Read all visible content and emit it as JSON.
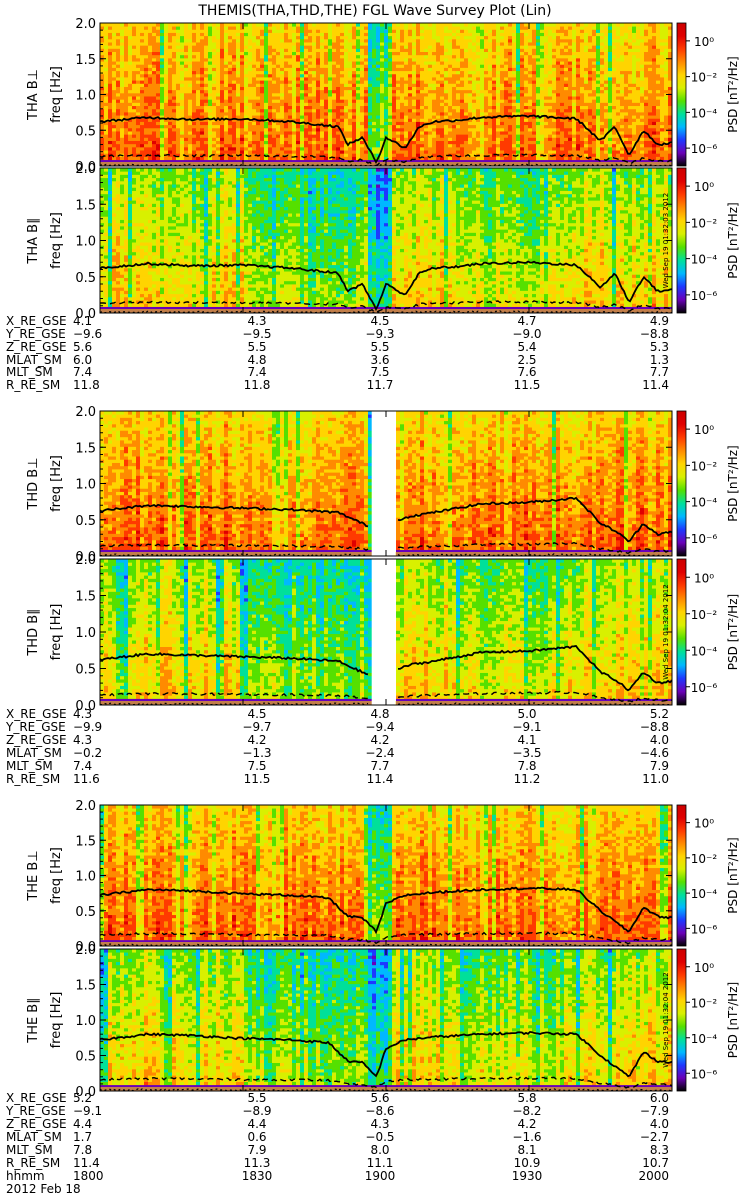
{
  "title": "THEMIS(THA,THD,THE) FGL Wave Survey Plot (Lin)",
  "colorbar": {
    "label": "PSD [nT²/Hz]",
    "tick_labels": [
      "10⁰",
      "10⁻²",
      "10⁻⁴",
      "10⁻⁶"
    ],
    "tick_exponents": [
      0,
      -2,
      -4,
      -6
    ],
    "range_exponent": [
      -7,
      1
    ],
    "colors": [
      "#000000",
      "#6a00b8",
      "#1e38ff",
      "#00b8ff",
      "#00e09a",
      "#55e000",
      "#d8f000",
      "#ffd400",
      "#ff8a00",
      "#ff3a00",
      "#e00000",
      "#cc0000"
    ]
  },
  "timestamps": [
    "Wed Sep 19 01:32:03 2012",
    "Wed Sep 19 01:32:04 2012",
    "Wed Sep 19 01:32:04 2012"
  ],
  "ylabel_unit": "freq [Hz]",
  "yticks": [
    "0.0",
    "0.5",
    "1.0",
    "1.5",
    "2.0"
  ],
  "probes": [
    {
      "name": "THA",
      "panels": [
        "THA B⊥",
        "THA B∥"
      ],
      "ephemeris": [
        {
          "label": "X_RE_GSE",
          "values": [
            "4.1",
            "4.3",
            "4.5",
            "4.7",
            "4.9"
          ]
        },
        {
          "label": "Y_RE_GSE",
          "values": [
            "−9.6",
            "−9.5",
            "−9.3",
            "−9.0",
            "−8.8"
          ]
        },
        {
          "label": "Z_RE_GSE",
          "values": [
            "5.6",
            "5.5",
            "5.5",
            "5.4",
            "5.3"
          ]
        },
        {
          "label": "MLAT_SM",
          "values": [
            "6.0",
            "4.8",
            "3.6",
            "2.5",
            "1.3"
          ]
        },
        {
          "label": "MLT_SM",
          "values": [
            "7.4",
            "7.4",
            "7.5",
            "7.6",
            "7.7"
          ]
        },
        {
          "label": "R_RE_SM",
          "values": [
            "11.8",
            "11.8",
            "11.7",
            "11.5",
            "11.4"
          ]
        }
      ]
    },
    {
      "name": "THD",
      "panels": [
        "THD B⊥",
        "THD B∥"
      ],
      "ephemeris": [
        {
          "label": "X_RE_GSE",
          "values": [
            "4.3",
            "4.5",
            "4.8",
            "5.0",
            "5.2"
          ]
        },
        {
          "label": "Y_RE_GSE",
          "values": [
            "−9.9",
            "−9.7",
            "−9.4",
            "−9.1",
            "−8.8"
          ]
        },
        {
          "label": "Z_RE_GSE",
          "values": [
            "4.3",
            "4.2",
            "4.2",
            "4.1",
            "4.0"
          ]
        },
        {
          "label": "MLAT_SM",
          "values": [
            "−0.2",
            "−1.3",
            "−2.4",
            "−3.5",
            "−4.6"
          ]
        },
        {
          "label": "MLT_SM",
          "values": [
            "7.4",
            "7.5",
            "7.7",
            "7.8",
            "7.9"
          ]
        },
        {
          "label": "R_RE_SM",
          "values": [
            "11.6",
            "11.5",
            "11.4",
            "11.2",
            "11.0"
          ]
        }
      ]
    },
    {
      "name": "THE",
      "panels": [
        "THE B⊥",
        "THE B∥"
      ],
      "ephemeris": [
        {
          "label": "X_RE_GSE",
          "values": [
            "5.2",
            "5.5",
            "5.6",
            "5.8",
            "6.0"
          ]
        },
        {
          "label": "Y_RE_GSE",
          "values": [
            "−9.1",
            "−8.9",
            "−8.6",
            "−8.2",
            "−7.9"
          ]
        },
        {
          "label": "Z_RE_GSE",
          "values": [
            "4.4",
            "4.4",
            "4.3",
            "4.2",
            "4.0"
          ]
        },
        {
          "label": "MLAT_SM",
          "values": [
            "1.7",
            "0.6",
            "−0.5",
            "−1.6",
            "−2.7"
          ]
        },
        {
          "label": "MLT_SM",
          "values": [
            "7.8",
            "7.9",
            "8.0",
            "8.1",
            "8.3"
          ]
        },
        {
          "label": "R_RE_SM",
          "values": [
            "11.4",
            "11.3",
            "11.1",
            "10.9",
            "10.7"
          ]
        },
        {
          "label": "hhmm",
          "values": [
            "1800",
            "1830",
            "1900",
            "1930",
            "2000"
          ]
        }
      ]
    }
  ],
  "date_label": "2012 Feb 18",
  "chart_data": {
    "type": "heatmap",
    "x_label": "hhmm",
    "x_ticks": [
      "1800",
      "1830",
      "1900",
      "1930",
      "2000"
    ],
    "x_range": [
      "18:00",
      "20:00"
    ],
    "y_range": [
      0.0,
      2.0
    ],
    "y_ticks": [
      0.0,
      0.5,
      1.0,
      1.5,
      2.0
    ],
    "color_scale": "log",
    "data_gaps": [
      {
        "probe": "THD",
        "start": "18:57",
        "end": "19:02"
      }
    ],
    "approx_fce_line_hz": {
      "THA": {
        "x": [
          0,
          10,
          20,
          30,
          40,
          50,
          52,
          55,
          58,
          60,
          64,
          67,
          70,
          75,
          80,
          90,
          100,
          105,
          108,
          111,
          114,
          117,
          120
        ],
        "y": [
          0.62,
          0.68,
          0.65,
          0.66,
          0.62,
          0.55,
          0.3,
          0.4,
          0.05,
          0.4,
          0.25,
          0.55,
          0.62,
          0.64,
          0.68,
          0.7,
          0.66,
          0.35,
          0.55,
          0.15,
          0.5,
          0.3,
          0.32
        ]
      },
      "THD": {
        "x": [
          0,
          10,
          20,
          30,
          40,
          50,
          56,
          63,
          65,
          70,
          80,
          90,
          100,
          105,
          108,
          111,
          114,
          117,
          120
        ],
        "y": [
          0.62,
          0.7,
          0.68,
          0.66,
          0.64,
          0.6,
          0.42,
          0.5,
          0.55,
          0.6,
          0.72,
          0.74,
          0.8,
          0.45,
          0.35,
          0.2,
          0.45,
          0.3,
          0.33
        ]
      },
      "THE": {
        "x": [
          0,
          10,
          20,
          30,
          40,
          48,
          52,
          55,
          58,
          60,
          64,
          70,
          80,
          90,
          100,
          105,
          108,
          111,
          114,
          117,
          120
        ],
        "y": [
          0.72,
          0.8,
          0.78,
          0.74,
          0.72,
          0.68,
          0.42,
          0.4,
          0.2,
          0.6,
          0.72,
          0.76,
          0.8,
          0.82,
          0.8,
          0.5,
          0.35,
          0.2,
          0.55,
          0.42,
          0.4
        ]
      }
    }
  }
}
